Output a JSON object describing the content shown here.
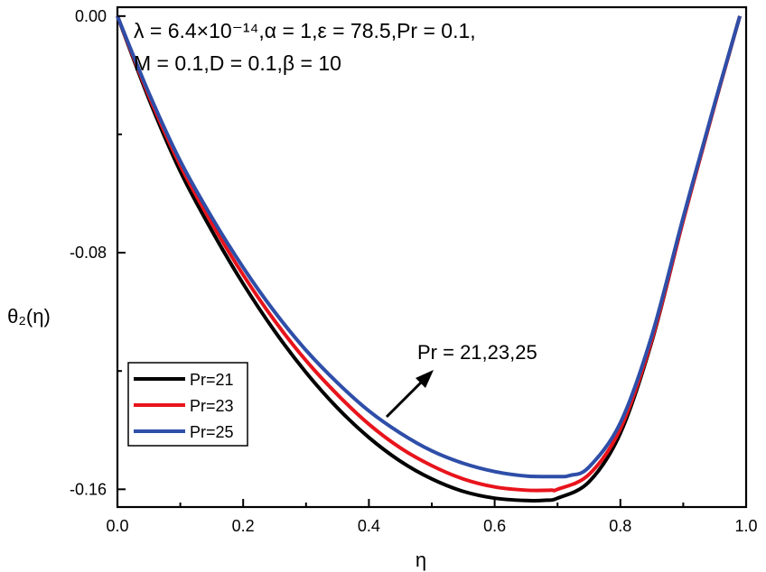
{
  "chart_data": {
    "type": "line",
    "title": "",
    "xlabel": "η",
    "ylabel": "θ₂(η)",
    "xlim": [
      0.0,
      1.0
    ],
    "ylim": [
      -0.166,
      0.003
    ],
    "xticks": [
      0.0,
      0.2,
      0.4,
      0.6,
      0.8,
      1.0
    ],
    "xtick_labels": [
      "0.0",
      "0.2",
      "0.4",
      "0.6",
      "0.8",
      "1.0"
    ],
    "yticks": [
      0.0,
      -0.08,
      -0.16
    ],
    "ytick_labels": [
      "0.00",
      "-0.08",
      "-0.16"
    ],
    "grid": false,
    "legend_position": "lower-left",
    "parameters_line1": "λ = 6.4×10⁻¹⁴,α = 1,ε = 78.5,Pr = 0.1,",
    "parameters_line2": "M = 0.1,D = 0.1,β = 10",
    "annotation": "Pr = 21,23,25",
    "series": [
      {
        "name": "Pr=21",
        "color": "#000000",
        "x": [
          0.0,
          0.05,
          0.1,
          0.15,
          0.2,
          0.25,
          0.3,
          0.35,
          0.4,
          0.45,
          0.5,
          0.55,
          0.6,
          0.65,
          0.68,
          0.7,
          0.75,
          0.8,
          0.85,
          0.9,
          0.95,
          0.99
        ],
        "y": [
          0.0,
          -0.028,
          -0.0525,
          -0.0725,
          -0.0905,
          -0.1065,
          -0.1205,
          -0.1325,
          -0.1425,
          -0.1505,
          -0.1565,
          -0.1607,
          -0.163,
          -0.1638,
          -0.1637,
          -0.163,
          -0.1575,
          -0.141,
          -0.11,
          -0.069,
          -0.03,
          0.0
        ]
      },
      {
        "name": "Pr=23",
        "color": "#e8141c",
        "x": [
          0.0,
          0.05,
          0.1,
          0.15,
          0.2,
          0.25,
          0.3,
          0.35,
          0.4,
          0.45,
          0.5,
          0.55,
          0.6,
          0.65,
          0.69,
          0.7,
          0.75,
          0.8,
          0.85,
          0.9,
          0.95,
          0.99
        ],
        "y": [
          0.0,
          -0.027,
          -0.0505,
          -0.07,
          -0.0875,
          -0.103,
          -0.1165,
          -0.128,
          -0.138,
          -0.146,
          -0.152,
          -0.1565,
          -0.1592,
          -0.1603,
          -0.1603,
          -0.16,
          -0.155,
          -0.1395,
          -0.1095,
          -0.069,
          -0.03,
          0.0
        ]
      },
      {
        "name": "Pr=25",
        "color": "#2e4ea8",
        "x": [
          0.0,
          0.05,
          0.1,
          0.15,
          0.2,
          0.25,
          0.3,
          0.35,
          0.4,
          0.45,
          0.5,
          0.55,
          0.6,
          0.65,
          0.7,
          0.72,
          0.75,
          0.8,
          0.85,
          0.9,
          0.95,
          0.99
        ],
        "y": [
          0.0,
          -0.026,
          -0.049,
          -0.068,
          -0.085,
          -0.1,
          -0.113,
          -0.124,
          -0.1335,
          -0.141,
          -0.147,
          -0.1512,
          -0.154,
          -0.1555,
          -0.1557,
          -0.1553,
          -0.1525,
          -0.1375,
          -0.108,
          -0.068,
          -0.0295,
          0.0
        ]
      }
    ]
  }
}
